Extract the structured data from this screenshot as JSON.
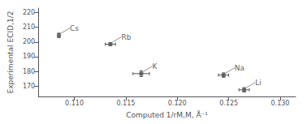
{
  "chart_data": {
    "type": "scatter",
    "xlabel": "Computed 1/rM,M, Å⁻¹",
    "ylabel": "Experimental ECID,1/2",
    "annotations": [
      "Cs",
      "Rb",
      "K",
      "Na",
      "Li"
    ],
    "x": [
      0.1085,
      0.1135,
      0.1165,
      0.1245,
      0.1265
    ],
    "values": [
      204.5,
      198.5,
      178.5,
      177.5,
      167.5
    ],
    "xerr": [
      0.0,
      0.0005,
      0.0008,
      0.0005,
      0.0005
    ],
    "yerr": [
      1.5,
      1.0,
      2.0,
      1.5,
      1.5
    ],
    "color": "#555555",
    "xlim": [
      0.1065,
      0.1315
    ],
    "ylim": [
      163,
      223
    ],
    "xticks": [
      {
        "value": 0.11,
        "label": "0.110"
      },
      0.115,
      {
        "value": 0.12,
        "label": "0.120"
      },
      0.125,
      {
        "value": 0.13,
        "label": "0.130"
      }
    ],
    "yticks": [
      170,
      180,
      190,
      200,
      210,
      220
    ],
    "grid": false
  }
}
